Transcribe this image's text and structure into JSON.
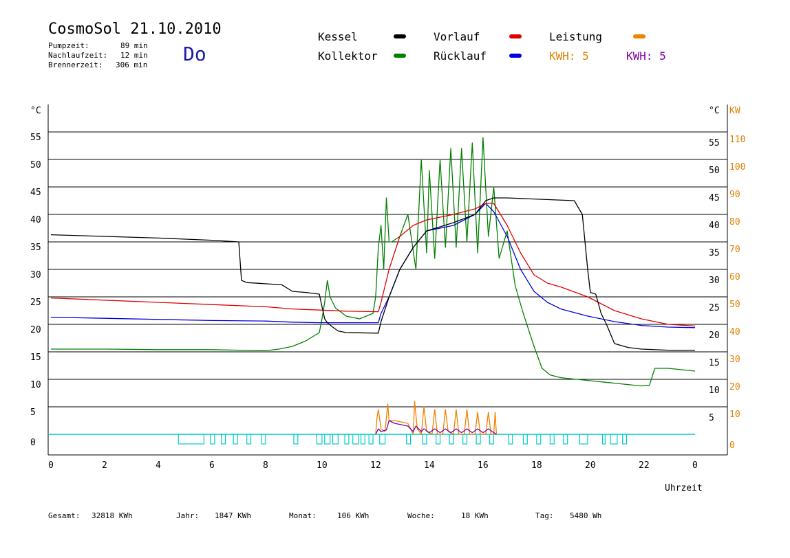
{
  "header": {
    "title": "CosmoSol 21.10.2010",
    "day": "Do",
    "stats": [
      {
        "label": "Pumpzeit:",
        "value": "89 min"
      },
      {
        "label": "Nachlaufzeit:",
        "value": "12 min"
      },
      {
        "label": "Brennerzeit:",
        "value": "306 min"
      }
    ]
  },
  "legend": {
    "kessel": {
      "label": "Kessel",
      "color": "#000000"
    },
    "vorlauf": {
      "label": "Vorlauf",
      "color": "#e00000"
    },
    "leistung": {
      "label": "Leistung",
      "color": "#f08000"
    },
    "kollektor": {
      "label": "Kollektor",
      "color": "#008000"
    },
    "ruecklauf": {
      "label": "Rücklauf",
      "color": "#0000e0"
    },
    "kwh1": {
      "label": "KWH: 5",
      "color": "#e08000"
    },
    "kwh2": {
      "label": "KWH: 5",
      "color": "#8000a0"
    }
  },
  "footer": [
    {
      "label": "Gesamt:",
      "value": "32818 KWh"
    },
    {
      "label": "Jahr:",
      "value": "1847 KWh"
    },
    {
      "label": "Monat:",
      "value": "106 KWh"
    },
    {
      "label": "Woche:",
      "value": "18 KWh"
    },
    {
      "label": "Tag:",
      "value": "5480 Wh"
    }
  ],
  "chart_data": {
    "type": "line",
    "xlabel": "Uhrzeit",
    "ylabel_left": "°C",
    "ylabel_right_unit": "°C",
    "ylabel_right": "KW",
    "xlim": [
      0,
      24
    ],
    "ylim": [
      -4,
      60
    ],
    "xtick_labels": [
      "0",
      "2",
      "4",
      "6",
      "8",
      "10",
      "12",
      "14",
      "16",
      "18",
      "20",
      "22",
      "0"
    ],
    "ytick_left": [
      0,
      5,
      10,
      15,
      20,
      25,
      30,
      35,
      40,
      45,
      50,
      55
    ],
    "ytick_right_temp": [
      5,
      10,
      15,
      20,
      25,
      30,
      35,
      40,
      45,
      50,
      55
    ],
    "ytick_right_kw": [
      0,
      10,
      20,
      30,
      40,
      50,
      60,
      70,
      80,
      90,
      100,
      110
    ],
    "grid": true,
    "series": [
      {
        "name": "Kessel",
        "color": "#000000",
        "x": [
          0,
          2,
          4,
          6,
          7,
          7.1,
          7.3,
          8.6,
          9,
          9.5,
          10,
          10.2,
          10.3,
          10.5,
          10.7,
          11,
          12.2,
          12.3,
          12.6,
          13,
          13.5,
          14,
          15,
          15.8,
          16.2,
          16.5,
          17,
          18,
          19.5,
          19.8,
          20,
          20.1,
          20.3,
          20.5,
          20.7,
          21,
          21.5,
          22,
          23,
          24
        ],
        "y": [
          36.3,
          36,
          35.7,
          35.3,
          35,
          28,
          27.6,
          27.2,
          26,
          25.8,
          25.5,
          21,
          20.3,
          19.5,
          18.8,
          18.5,
          18.4,
          20.5,
          25,
          30,
          34,
          37,
          38.5,
          40,
          42.5,
          43,
          43,
          42.8,
          42.5,
          40,
          30,
          25.8,
          25.5,
          22,
          20,
          16.5,
          15.8,
          15.5,
          15.3,
          15.3
        ]
      },
      {
        "name": "Vorlauf",
        "color": "#e00000",
        "x": [
          0,
          2,
          4,
          6,
          8,
          9,
          10,
          11,
          12.2,
          12.3,
          12.6,
          13,
          13.5,
          14,
          15,
          15.8,
          16.2,
          16.5,
          17,
          17.5,
          18,
          18.5,
          19,
          20,
          21,
          22,
          23,
          24
        ],
        "y": [
          24.8,
          24.4,
          24,
          23.6,
          23.2,
          22.8,
          22.6,
          22.4,
          22.3,
          24,
          30,
          36,
          38,
          39,
          40,
          41,
          42,
          42,
          38,
          33,
          29,
          27.5,
          26.8,
          25,
          22.5,
          21,
          20,
          19.7
        ]
      },
      {
        "name": "Rücklauf",
        "color": "#0000e0",
        "x": [
          0,
          2,
          4,
          6,
          8,
          9,
          10,
          11,
          12.2,
          12.3,
          12.6,
          13,
          13.5,
          14,
          15,
          15.8,
          16.2,
          16.5,
          17,
          17.5,
          18,
          18.5,
          19,
          20,
          21,
          22,
          23,
          24
        ],
        "y": [
          21.3,
          21.1,
          20.9,
          20.7,
          20.6,
          20.4,
          20.3,
          20.3,
          20.3,
          22,
          25,
          30,
          34,
          37,
          38,
          40,
          42,
          40.5,
          36,
          30,
          26,
          24,
          22.8,
          21.5,
          20.5,
          19.8,
          19.5,
          19.4
        ]
      },
      {
        "name": "Kollektor",
        "color": "#008000",
        "x": [
          0,
          2,
          4,
          6,
          7,
          8,
          8.5,
          9,
          9.5,
          10,
          10.1,
          10.2,
          10.3,
          10.4,
          10.6,
          11,
          11.5,
          12,
          12.1,
          12.2,
          12.3,
          12.4,
          12.5,
          12.6,
          12.7,
          13,
          13.3,
          13.6,
          13.8,
          14,
          14.1,
          14.3,
          14.5,
          14.7,
          14.9,
          15.1,
          15.3,
          15.5,
          15.7,
          15.9,
          16.1,
          16.3,
          16.5,
          16.7,
          17,
          17.3,
          17.6,
          18,
          18.3,
          18.6,
          19,
          20,
          21,
          22,
          22.3,
          22.5,
          23,
          24
        ],
        "y": [
          15.5,
          15.5,
          15.4,
          15.4,
          15.3,
          15.2,
          15.5,
          16,
          17,
          18.5,
          21,
          24,
          28,
          25,
          23,
          21.5,
          21,
          22,
          25,
          34,
          38,
          30,
          43,
          35,
          35,
          36,
          40,
          30,
          50,
          33,
          48,
          32,
          50,
          34,
          52,
          34,
          52,
          35,
          53,
          33,
          54,
          36,
          45,
          32,
          37,
          27,
          22,
          16,
          12,
          10.8,
          10.3,
          9.8,
          9.3,
          8.8,
          8.9,
          12,
          12,
          11.5
        ]
      },
      {
        "name": "Leistung",
        "color": "#f08000",
        "x": [
          12.1,
          12.15,
          12.2,
          12.3,
          12.45,
          12.55,
          12.6,
          12.8,
          13.3,
          13.5,
          13.55,
          13.65,
          13.8,
          13.9,
          14,
          14.2,
          14.3,
          14.4,
          14.6,
          14.7,
          14.8,
          15,
          15.1,
          15.2,
          15.4,
          15.5,
          15.6,
          15.8,
          15.9,
          16,
          16.2,
          16.3,
          16.4,
          16.5,
          16.55,
          16.6
        ],
        "y": [
          0,
          3,
          4.5,
          1,
          0.5,
          5.5,
          2.5,
          2.5,
          2,
          0,
          6,
          1,
          0,
          5,
          0.5,
          0,
          4.5,
          0,
          0,
          4.5,
          0.5,
          0,
          4.5,
          0,
          0,
          4.5,
          0,
          0,
          4,
          0,
          0,
          4,
          0,
          0,
          4,
          0
        ]
      },
      {
        "name": "KWH",
        "color": "#8000a0",
        "x": [
          12.1,
          12.2,
          12.3,
          12.5,
          12.6,
          12.8,
          13.3,
          13.5,
          13.6,
          13.8,
          13.9,
          14.1,
          14.3,
          14.5,
          14.7,
          14.9,
          15.1,
          15.3,
          15.5,
          15.7,
          15.9,
          16.1,
          16.3,
          16.5,
          16.6
        ],
        "y": [
          0,
          1,
          0.5,
          0.8,
          2.5,
          2,
          1.5,
          0.5,
          1.5,
          0.5,
          1,
          0.3,
          1,
          0.3,
          1,
          0.3,
          1,
          0.3,
          1,
          0.3,
          1,
          0.3,
          1,
          0.3,
          0
        ]
      }
    ],
    "status_bar": {
      "color": "#00cccc",
      "level": 0,
      "pulses": [
        [
          4.75,
          5.7
        ],
        [
          5.95,
          6.1
        ],
        [
          6.35,
          6.5
        ],
        [
          6.8,
          6.95
        ],
        [
          7.3,
          7.45
        ],
        [
          7.85,
          8.0
        ],
        [
          9.05,
          9.2
        ],
        [
          9.9,
          10.1
        ],
        [
          10.2,
          10.4
        ],
        [
          10.5,
          10.7
        ],
        [
          10.95,
          11.1
        ],
        [
          11.25,
          11.45
        ],
        [
          11.55,
          11.7
        ],
        [
          11.85,
          12.0
        ],
        [
          12.25,
          12.45
        ],
        [
          13.25,
          13.4
        ],
        [
          13.85,
          14.0
        ],
        [
          14.35,
          14.5
        ],
        [
          14.85,
          15.0
        ],
        [
          15.35,
          15.5
        ],
        [
          15.85,
          16.0
        ],
        [
          16.35,
          16.5
        ],
        [
          17.05,
          17.2
        ],
        [
          17.6,
          17.75
        ],
        [
          18.1,
          18.25
        ],
        [
          18.6,
          18.75
        ],
        [
          19.1,
          19.25
        ],
        [
          19.7,
          20.0
        ],
        [
          20.55,
          20.65
        ],
        [
          20.85,
          21.1
        ],
        [
          21.3,
          21.45
        ]
      ]
    }
  }
}
